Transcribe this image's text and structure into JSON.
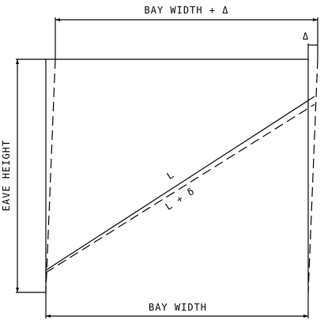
{
  "labels": {
    "top_dimension": "BAY WIDTH + Δ",
    "bottom_dimension": "BAY WIDTH",
    "side_dimension": "EAVE HEIGHT",
    "delta": "Δ",
    "brace_length": "L",
    "deformed_length": "L + δ"
  }
}
